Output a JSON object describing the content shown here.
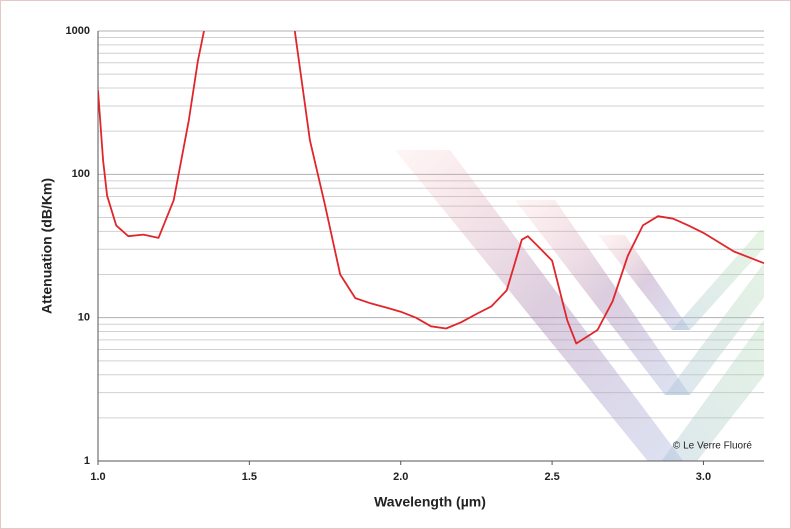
{
  "chart_data": {
    "type": "line",
    "x_label": "Wavelength (µm)",
    "y_label": "Attenuation (dB/Km)",
    "annotation": "© Le Verre Fluoré",
    "log_y": true,
    "grid": true,
    "minor_grid": true,
    "xlim": [
      1,
      3.2
    ],
    "ylim": [
      1,
      1000
    ],
    "xticks": [
      {
        "value": 1,
        "label": "1.0"
      },
      {
        "value": 1.5,
        "label": "1.5"
      },
      {
        "value": 2,
        "label": "2.0"
      },
      {
        "value": 2.5,
        "label": "2.5"
      },
      {
        "value": 3,
        "label": "3.0"
      }
    ],
    "yticks": [
      1,
      10,
      100,
      1000
    ],
    "x": [
      1.0,
      1.017,
      1.03,
      1.06,
      1.1,
      1.15,
      1.2,
      1.25,
      1.3,
      1.33,
      1.35,
      1.5,
      1.65,
      1.7,
      1.75,
      1.8,
      1.85,
      1.9,
      1.95,
      2.0,
      2.05,
      2.1,
      2.15,
      2.2,
      2.25,
      2.3,
      2.35,
      2.4,
      2.42,
      2.45,
      2.5,
      2.55,
      2.58,
      2.65,
      2.7,
      2.75,
      2.8,
      2.85,
      2.9,
      2.95,
      3.0,
      3.1,
      3.2
    ],
    "series": [
      {
        "color": "#e0262b",
        "values": [
          385,
          125,
          71,
          44,
          37,
          38,
          36,
          66,
          238,
          620,
          1000,
          null,
          1000,
          173,
          61,
          20,
          13.7,
          12.6,
          11.8,
          11,
          10,
          8.7,
          8.4,
          9.3,
          10.6,
          12,
          15.5,
          35,
          37,
          32,
          25,
          9.6,
          6.6,
          8.2,
          13,
          27,
          44,
          51,
          49,
          44,
          39,
          29,
          24
        ]
      }
    ]
  }
}
